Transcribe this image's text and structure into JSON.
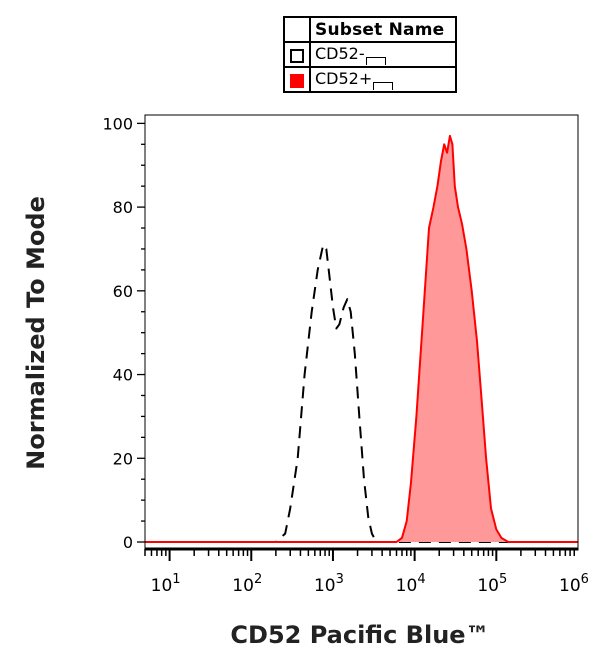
{
  "legend": {
    "header": "Subset Name",
    "items": [
      {
        "label": "CD52-",
        "style": "dashed-outline",
        "color": "#000000"
      },
      {
        "label": "CD52+",
        "style": "filled",
        "color": "#ff0000"
      }
    ]
  },
  "chart_data": {
    "type": "area",
    "xlabel": "CD52 Pacific Blue™",
    "ylabel": "Normalized To Mode",
    "x_scale": "log",
    "xlim": [
      5,
      1000000
    ],
    "ylim": [
      0,
      102
    ],
    "y_ticks": [
      0,
      20,
      40,
      60,
      80,
      100
    ],
    "x_ticks": [
      {
        "value": 10,
        "base": "10",
        "exp": "1"
      },
      {
        "value": 100,
        "base": "10",
        "exp": "2"
      },
      {
        "value": 1000,
        "base": "10",
        "exp": "3"
      },
      {
        "value": 10000,
        "base": "10",
        "exp": "4"
      },
      {
        "value": 100000,
        "base": "10",
        "exp": "5"
      },
      {
        "value": 1000000,
        "base": "10",
        "exp": "6"
      }
    ],
    "grid": false,
    "legend_position": "top",
    "series": [
      {
        "name": "CD52-",
        "style": "dashed",
        "color": "#000000",
        "fill": "none",
        "points": [
          [
            5,
            0
          ],
          [
            200,
            0
          ],
          [
            260,
            2
          ],
          [
            300,
            8
          ],
          [
            370,
            20
          ],
          [
            450,
            40
          ],
          [
            550,
            55
          ],
          [
            650,
            65
          ],
          [
            760,
            71
          ],
          [
            830,
            70
          ],
          [
            900,
            64
          ],
          [
            1000,
            56
          ],
          [
            1100,
            51
          ],
          [
            1200,
            52
          ],
          [
            1350,
            56
          ],
          [
            1500,
            58
          ],
          [
            1650,
            55
          ],
          [
            1850,
            45
          ],
          [
            2100,
            30
          ],
          [
            2400,
            15
          ],
          [
            2700,
            6
          ],
          [
            3000,
            2
          ],
          [
            3400,
            0
          ],
          [
            1000000,
            0
          ]
        ]
      },
      {
        "name": "CD52+",
        "style": "solid",
        "color": "#ff0000",
        "fill": "#ff9999",
        "points": [
          [
            5,
            0
          ],
          [
            6000,
            0
          ],
          [
            7000,
            1
          ],
          [
            8000,
            5
          ],
          [
            9000,
            14
          ],
          [
            10500,
            30
          ],
          [
            12500,
            52
          ],
          [
            15000,
            75
          ],
          [
            17000,
            80
          ],
          [
            19000,
            85
          ],
          [
            21000,
            91
          ],
          [
            23000,
            95
          ],
          [
            25000,
            93
          ],
          [
            27000,
            97
          ],
          [
            29000,
            95
          ],
          [
            31000,
            85
          ],
          [
            34000,
            80
          ],
          [
            38000,
            76
          ],
          [
            43000,
            70
          ],
          [
            50000,
            60
          ],
          [
            58000,
            48
          ],
          [
            66000,
            34
          ],
          [
            75000,
            20
          ],
          [
            86000,
            8
          ],
          [
            100000,
            3
          ],
          [
            115000,
            1
          ],
          [
            140000,
            0
          ],
          [
            1000000,
            0
          ]
        ]
      }
    ]
  }
}
